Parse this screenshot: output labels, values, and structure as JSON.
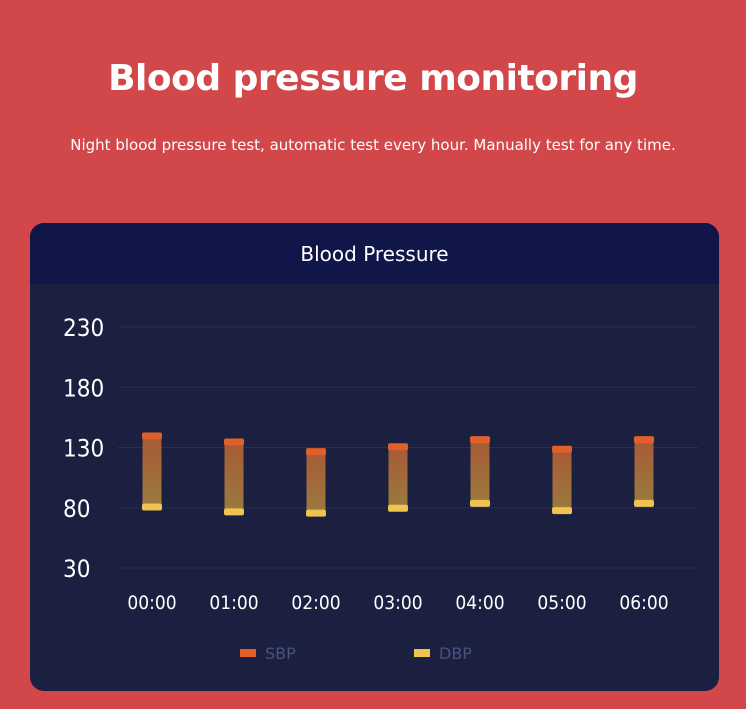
{
  "page": {
    "headline": "Blood pressure monitoring",
    "subtitle": "Night blood pressure test, automatic test every hour. Manually test for any time."
  },
  "colors": {
    "background": "#d2474a",
    "card": "#1b1f40",
    "card_header": "#111649",
    "sbp": "#e0602a",
    "dbp": "#f0c24f",
    "gridline": "#2a2f55"
  },
  "chart_data": {
    "type": "bar",
    "title": "Blood Pressure",
    "categories": [
      "00:00",
      "01:00",
      "02:00",
      "03:00",
      "04:00",
      "05:00",
      "06:00"
    ],
    "series": [
      {
        "name": "SBP",
        "values": [
          140,
          135,
          127,
          131,
          137,
          129,
          137
        ]
      },
      {
        "name": "DBP",
        "values": [
          81,
          77,
          76,
          80,
          84,
          78,
          84
        ]
      }
    ],
    "yticks": [
      230,
      180,
      130,
      80,
      30
    ],
    "ylim": [
      30,
      230
    ],
    "grid": true,
    "legend": "bottom-center"
  }
}
